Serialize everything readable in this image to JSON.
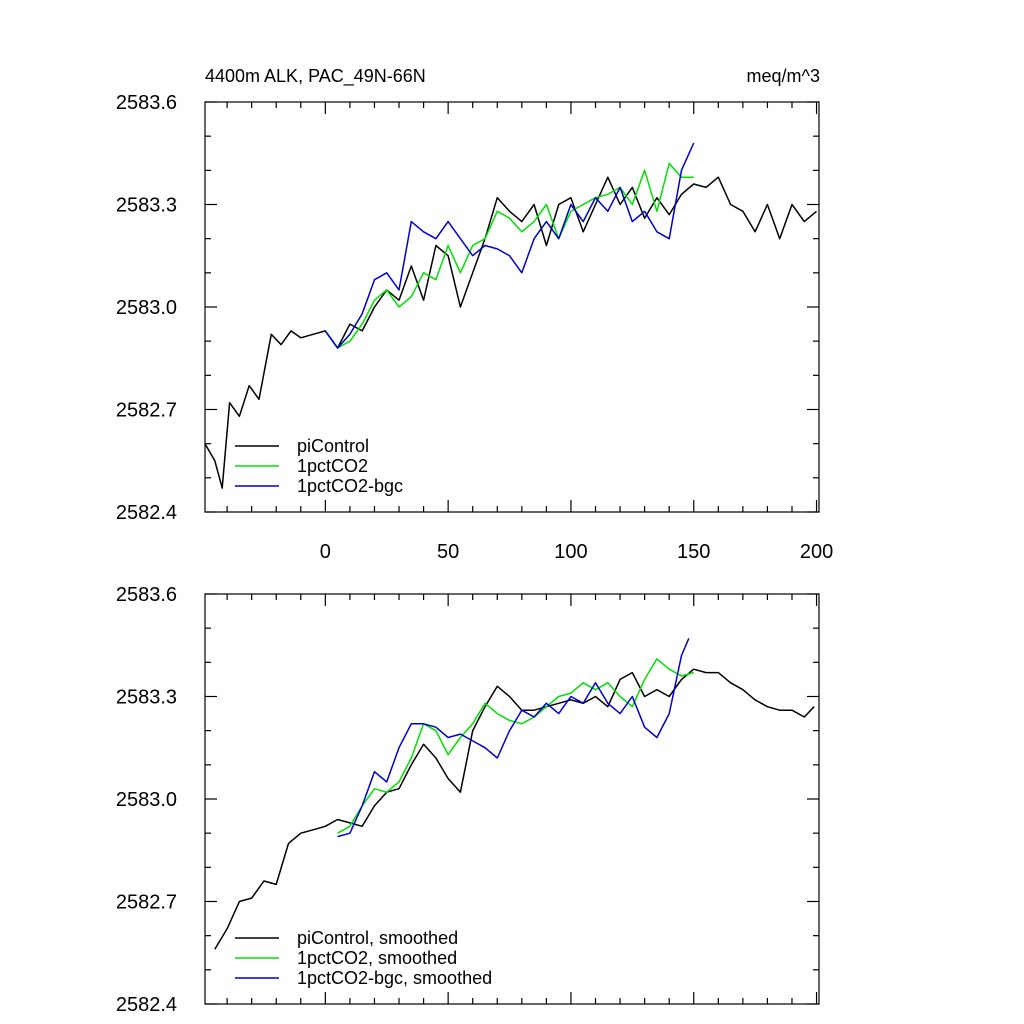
{
  "chart_data": [
    {
      "type": "line",
      "title_left": "4400m ALK, PAC_49N-66N",
      "title_right": "meq/m^3",
      "xlim": [
        -49,
        201
      ],
      "ylim": [
        2582.4,
        2583.6
      ],
      "x_ticks": [
        0,
        50,
        100,
        150,
        200
      ],
      "y_ticks": [
        2582.4,
        2582.7,
        2583.0,
        2583.3,
        2583.6
      ],
      "y_tick_labels": [
        "2582.4",
        "2582.7",
        "2583.0",
        "2583.3",
        "2583.6"
      ],
      "x_tick_labels": [
        "0",
        "50",
        "100",
        "150",
        "200"
      ],
      "legend_placement": "bottom-left",
      "series": [
        {
          "name": "piControl",
          "color": "#000000",
          "x": [
            -49,
            -45,
            -42,
            -39,
            -35,
            -31,
            -27,
            -22,
            -18,
            -14,
            -10,
            -5,
            0,
            5,
            10,
            15,
            20,
            25,
            30,
            35,
            40,
            45,
            50,
            55,
            60,
            65,
            70,
            75,
            80,
            85,
            90,
            95,
            100,
            105,
            110,
            115,
            120,
            125,
            130,
            135,
            140,
            145,
            150,
            155,
            160,
            165,
            170,
            175,
            180,
            185,
            190,
            195,
            200
          ],
          "y": [
            2582.6,
            2582.55,
            2582.47,
            2582.72,
            2582.68,
            2582.77,
            2582.73,
            2582.92,
            2582.89,
            2582.93,
            2582.91,
            2582.92,
            2582.93,
            2582.88,
            2582.95,
            2582.93,
            2583.0,
            2583.05,
            2583.02,
            2583.12,
            2583.02,
            2583.18,
            2583.15,
            2583.0,
            2583.1,
            2583.2,
            2583.32,
            2583.28,
            2583.25,
            2583.3,
            2583.18,
            2583.3,
            2583.32,
            2583.22,
            2583.3,
            2583.38,
            2583.3,
            2583.35,
            2583.26,
            2583.32,
            2583.27,
            2583.33,
            2583.36,
            2583.35,
            2583.38,
            2583.3,
            2583.28,
            2583.22,
            2583.3,
            2583.2,
            2583.3,
            2583.25,
            2583.28
          ]
        },
        {
          "name": "1pctCO2",
          "color": "#00e000",
          "x": [
            0,
            5,
            10,
            15,
            20,
            25,
            30,
            35,
            40,
            45,
            50,
            55,
            60,
            65,
            70,
            75,
            80,
            85,
            90,
            95,
            100,
            105,
            110,
            115,
            120,
            125,
            130,
            135,
            140,
            145,
            150
          ],
          "y": [
            2582.93,
            2582.88,
            2582.9,
            2582.95,
            2583.02,
            2583.05,
            2583.0,
            2583.03,
            2583.1,
            2583.08,
            2583.18,
            2583.1,
            2583.18,
            2583.2,
            2583.28,
            2583.26,
            2583.22,
            2583.25,
            2583.3,
            2583.2,
            2583.28,
            2583.3,
            2583.32,
            2583.33,
            2583.35,
            2583.3,
            2583.4,
            2583.28,
            2583.42,
            2583.38,
            2583.38
          ]
        },
        {
          "name": "1pctCO2-bgc",
          "color": "#0000cc",
          "x": [
            0,
            5,
            10,
            15,
            20,
            25,
            30,
            35,
            40,
            45,
            50,
            55,
            60,
            65,
            70,
            75,
            80,
            85,
            90,
            95,
            100,
            105,
            110,
            115,
            120,
            125,
            130,
            135,
            140,
            145,
            150
          ],
          "y": [
            2582.93,
            2582.88,
            2582.92,
            2582.98,
            2583.08,
            2583.1,
            2583.05,
            2583.25,
            2583.22,
            2583.2,
            2583.25,
            2583.2,
            2583.15,
            2583.18,
            2583.17,
            2583.15,
            2583.1,
            2583.2,
            2583.25,
            2583.2,
            2583.3,
            2583.25,
            2583.32,
            2583.28,
            2583.35,
            2583.25,
            2583.28,
            2583.22,
            2583.2,
            2583.4,
            2583.48
          ]
        }
      ]
    },
    {
      "type": "line",
      "xlim": [
        -49,
        201
      ],
      "ylim": [
        2582.4,
        2583.6
      ],
      "x_ticks": [
        0,
        50,
        100,
        150,
        200
      ],
      "y_ticks": [
        2582.4,
        2582.7,
        2583.0,
        2583.3,
        2583.6
      ],
      "y_tick_labels": [
        "2582.4",
        "2582.7",
        "2583.0",
        "2583.3",
        "2583.6"
      ],
      "legend_placement": "bottom-left",
      "series": [
        {
          "name": "piControl, smoothed",
          "color": "#000000",
          "x": [
            -45,
            -40,
            -35,
            -30,
            -25,
            -20,
            -15,
            -10,
            -5,
            0,
            5,
            10,
            15,
            20,
            25,
            30,
            35,
            40,
            45,
            50,
            55,
            60,
            65,
            70,
            75,
            80,
            85,
            90,
            95,
            100,
            105,
            110,
            115,
            120,
            125,
            130,
            135,
            140,
            145,
            150,
            155,
            160,
            165,
            170,
            175,
            180,
            185,
            190,
            195,
            199
          ],
          "y": [
            2582.56,
            2582.62,
            2582.7,
            2582.71,
            2582.76,
            2582.75,
            2582.87,
            2582.9,
            2582.91,
            2582.92,
            2582.94,
            2582.93,
            2582.92,
            2582.98,
            2583.02,
            2583.03,
            2583.1,
            2583.16,
            2583.12,
            2583.06,
            2583.02,
            2583.2,
            2583.27,
            2583.33,
            2583.3,
            2583.26,
            2583.26,
            2583.27,
            2583.28,
            2583.29,
            2583.28,
            2583.3,
            2583.27,
            2583.35,
            2583.37,
            2583.3,
            2583.32,
            2583.3,
            2583.35,
            2583.38,
            2583.37,
            2583.37,
            2583.34,
            2583.32,
            2583.29,
            2583.27,
            2583.26,
            2583.26,
            2583.24,
            2583.27
          ]
        },
        {
          "name": "1pctCO2, smoothed",
          "color": "#00e000",
          "x": [
            5,
            10,
            15,
            20,
            25,
            30,
            35,
            40,
            45,
            50,
            55,
            60,
            65,
            70,
            75,
            80,
            85,
            90,
            95,
            100,
            105,
            110,
            115,
            120,
            125,
            130,
            135,
            140,
            145,
            150
          ],
          "y": [
            2582.9,
            2582.92,
            2582.98,
            2583.03,
            2583.02,
            2583.05,
            2583.12,
            2583.22,
            2583.2,
            2583.13,
            2583.18,
            2583.22,
            2583.28,
            2583.25,
            2583.23,
            2583.22,
            2583.24,
            2583.27,
            2583.3,
            2583.31,
            2583.34,
            2583.32,
            2583.34,
            2583.3,
            2583.27,
            2583.35,
            2583.41,
            2583.38,
            2583.36,
            2583.37
          ]
        },
        {
          "name": "1pctCO2-bgc, smoothed",
          "color": "#0000cc",
          "x": [
            5,
            10,
            15,
            20,
            25,
            30,
            35,
            40,
            45,
            50,
            55,
            60,
            65,
            70,
            75,
            80,
            85,
            90,
            95,
            100,
            105,
            110,
            115,
            120,
            125,
            130,
            135,
            140,
            145,
            148
          ],
          "y": [
            2582.89,
            2582.9,
            2582.98,
            2583.08,
            2583.05,
            2583.15,
            2583.22,
            2583.22,
            2583.21,
            2583.18,
            2583.19,
            2583.17,
            2583.15,
            2583.12,
            2583.2,
            2583.26,
            2583.24,
            2583.28,
            2583.25,
            2583.3,
            2583.28,
            2583.34,
            2583.28,
            2583.25,
            2583.3,
            2583.21,
            2583.18,
            2583.25,
            2583.42,
            2583.47
          ]
        }
      ]
    }
  ]
}
